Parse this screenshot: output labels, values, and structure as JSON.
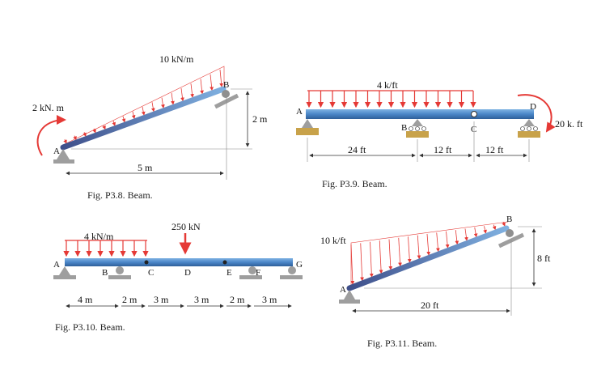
{
  "colors": {
    "beam": "#5b9bd5",
    "load": "#e53935",
    "support": "#9e9e9e",
    "base": "#c8a24a"
  },
  "fig38": {
    "caption": "Fig. P3.8. Beam.",
    "load_label": "10 kN/m",
    "moment_label": "2 kN. m",
    "point_a": "A",
    "point_b": "B",
    "span_label": "5 m",
    "height_label": "2 m"
  },
  "fig39": {
    "caption": "Fig. P3.9. Beam.",
    "load_label": "4 k/ft",
    "moment_label": "20 k. ft",
    "point_a": "A",
    "point_b": "B",
    "point_c": "C",
    "point_d": "D",
    "dims": [
      "24 ft",
      "12 ft",
      "12 ft"
    ]
  },
  "fig310": {
    "caption": "Fig. P3.10. Beam.",
    "load_label": "4 kN/m",
    "point_load_label": "250 kN",
    "points": [
      "A",
      "B",
      "C",
      "D",
      "E",
      "F",
      "G"
    ],
    "dims": [
      "4 m",
      "2 m",
      "3 m",
      "3 m",
      "2 m",
      "3 m"
    ]
  },
  "fig311": {
    "caption": "Fig. P3.11. Beam.",
    "load_label": "10 k/ft",
    "point_a": "A",
    "point_b": "B",
    "span_label": "20 ft",
    "height_label": "8 ft"
  }
}
